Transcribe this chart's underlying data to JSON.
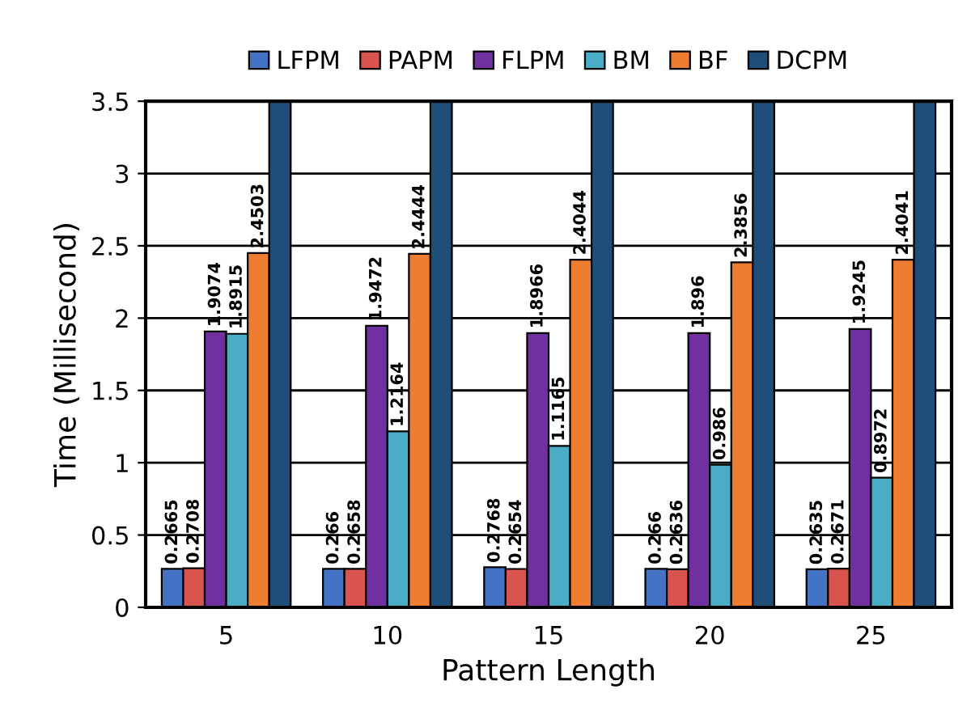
{
  "chart_data": {
    "type": "bar",
    "xlabel": "Pattern Length",
    "ylabel": "Time (Millisecond)",
    "categories": [
      "5",
      "10",
      "15",
      "20",
      "25"
    ],
    "series": [
      {
        "name": "LFPM",
        "color": "#4472c4",
        "values": [
          0.2665,
          0.266,
          0.2768,
          0.266,
          0.2635
        ],
        "value_labels": [
          "0.2665",
          "0.266",
          "0.2768",
          "0.266",
          "0.2635"
        ]
      },
      {
        "name": "PAPM",
        "color": "#d9534f",
        "values": [
          0.2708,
          0.2658,
          0.2654,
          0.2636,
          0.2671
        ],
        "value_labels": [
          "0.2708",
          "0.2658",
          "0.2654",
          "0.2636",
          "0.2671"
        ]
      },
      {
        "name": "FLPM",
        "color": "#7030a0",
        "values": [
          1.9074,
          1.9472,
          1.8966,
          1.896,
          1.9245
        ],
        "value_labels": [
          "1.9074",
          "1.9472",
          "1.8966",
          "1.896",
          "1.9245"
        ]
      },
      {
        "name": "BM",
        "color": "#4bacc6",
        "values": [
          1.8915,
          1.2164,
          1.1165,
          0.986,
          0.8972
        ],
        "value_labels": [
          "1.8915",
          "1.2164",
          "1.1165",
          "0.986",
          "0.8972"
        ]
      },
      {
        "name": "BF",
        "color": "#ed7d31",
        "values": [
          2.4503,
          2.4444,
          2.4044,
          2.3856,
          2.4041
        ],
        "value_labels": [
          "2.4503",
          "2.4444",
          "2.4044",
          "2.3856",
          "2.4041"
        ]
      },
      {
        "name": "DCPM",
        "color": "#1f4e79",
        "values": [
          3.5,
          3.5,
          3.5,
          3.5,
          3.5
        ]
      }
    ],
    "ylim": [
      0,
      3.5
    ],
    "yticks": [
      0,
      0.5,
      1,
      1.5,
      2,
      2.5,
      3,
      3.5
    ],
    "grid": "y",
    "legend": "top"
  }
}
